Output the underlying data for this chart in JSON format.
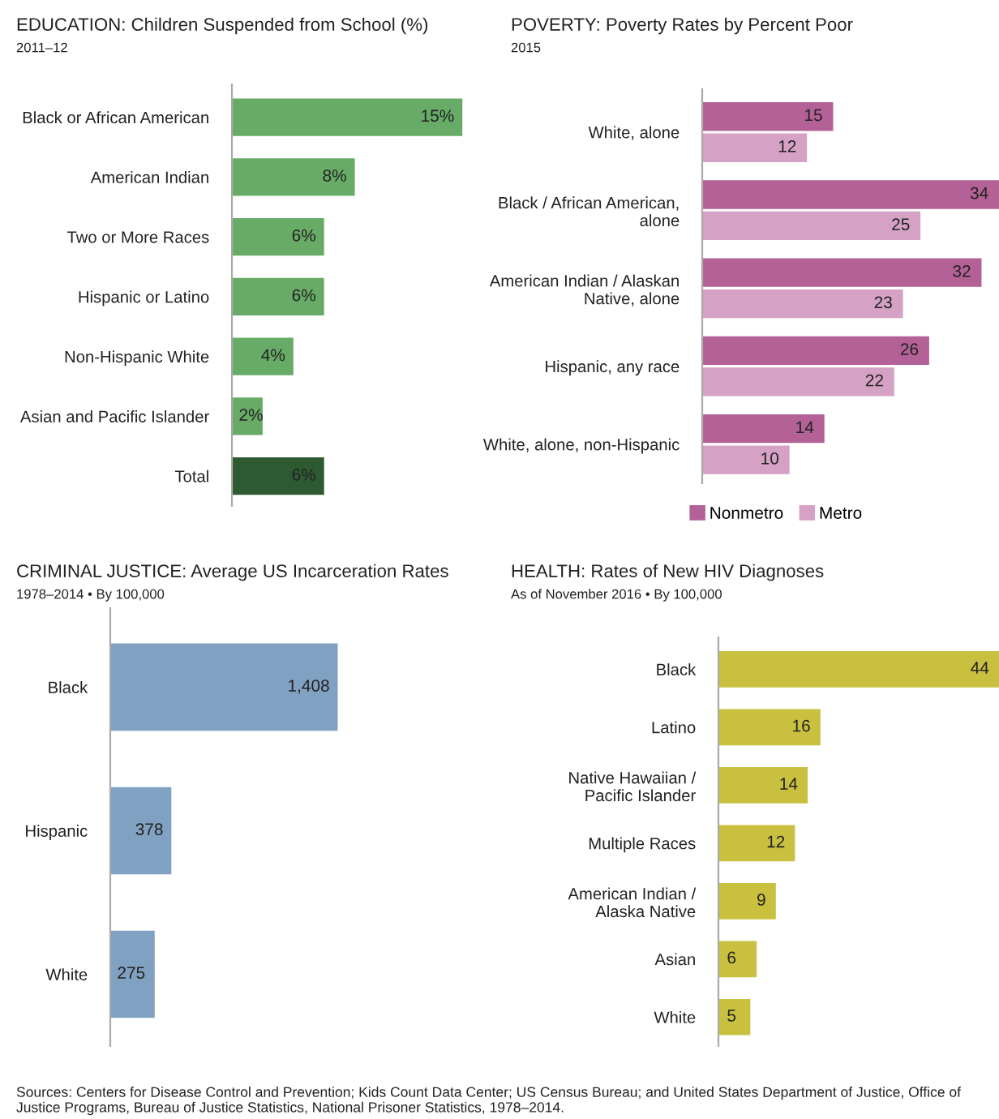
{
  "chart_data": [
    {
      "type": "bar",
      "orientation": "horizontal",
      "title": "EDUCATION: Children Suspended from School (%)",
      "subtitle": "2011–12",
      "categories": [
        "Black or African American",
        "American Indian",
        "Two or More Races",
        "Hispanic or Latino",
        "Non-Hispanic White",
        "Asian and Pacific Islander",
        "Total"
      ],
      "values": [
        15,
        8,
        6,
        6,
        4,
        2,
        6
      ],
      "colors": [
        "#67ab67",
        "#67ab67",
        "#67ab67",
        "#67ab67",
        "#67ab67",
        "#67ab67",
        "#2e5a32"
      ],
      "value_labels": [
        "15%",
        "8%",
        "6%",
        "6%",
        "4%",
        "2%",
        "6%"
      ],
      "legend": false
    },
    {
      "type": "bar",
      "orientation": "horizontal",
      "title": "POVERTY: Poverty Rates by Percent Poor",
      "subtitle": "2015",
      "categories": [
        "White, alone",
        "Black / African American,\nalone",
        "American Indian / Alaskan\nNative, alone",
        "Hispanic, any race",
        "White, alone, non-Hispanic"
      ],
      "series": [
        {
          "name": "Nonmetro",
          "color": "#b36196",
          "values": [
            15,
            34,
            32,
            26,
            14
          ]
        },
        {
          "name": "Metro",
          "color": "#d5a1c4",
          "values": [
            12,
            25,
            23,
            22,
            10
          ]
        }
      ],
      "data_labels": true,
      "legend": "bottom"
    },
    {
      "type": "bar",
      "orientation": "horizontal",
      "title": "CRIMINAL JUSTICE: Average US Incarceration Rates",
      "subtitle": "1978–2014 • By 100,000",
      "categories": [
        "Black",
        "Hispanic",
        "White"
      ],
      "values": [
        1408,
        378,
        275
      ],
      "color": "#80a1c1",
      "value_labels": [
        "1,408",
        "378",
        "275"
      ],
      "legend": false
    },
    {
      "type": "bar",
      "orientation": "horizontal",
      "title": "HEALTH: Rates of New HIV Diagnoses",
      "subtitle": "As of November 2016 • By 100,000",
      "categories": [
        "Black",
        "Latino",
        "Native Hawaiian /\nPacific Islander",
        "Multiple Races",
        "American Indian /\nAlaska Native",
        "Asian",
        "White"
      ],
      "values": [
        44,
        16,
        14,
        12,
        9,
        6,
        5
      ],
      "color": "#c9c03f",
      "data_labels": true,
      "legend": false,
      "annotations": [
        "Sources: Centers for Disease Control and Prevention; Kids Count Data Center; US Census Bureau; and United States Department of Justice, Office of Justice Programs, Bureau of Justice Statistics, National Prisoner Statistics, 1978–2014."
      ]
    }
  ]
}
